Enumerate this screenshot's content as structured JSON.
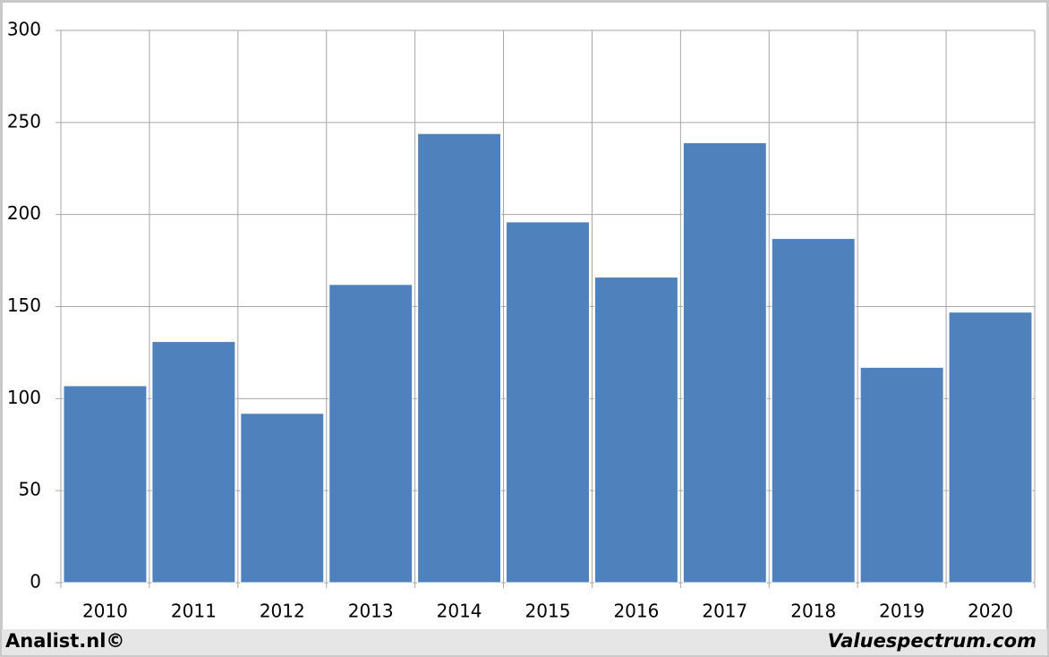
{
  "chart_data": {
    "type": "bar",
    "categories": [
      "2010",
      "2011",
      "2012",
      "2013",
      "2014",
      "2015",
      "2016",
      "2017",
      "2018",
      "2019",
      "2020"
    ],
    "values": [
      107,
      131,
      92,
      162,
      244,
      196,
      166,
      239,
      187,
      117,
      147
    ],
    "color": "#4f81bd",
    "ylim": [
      0,
      300
    ],
    "yticks": [
      0,
      50,
      100,
      150,
      200,
      250,
      300
    ],
    "grid": true,
    "annotations": [
      "Analist.nl©",
      "Valuespectrum.com"
    ]
  }
}
